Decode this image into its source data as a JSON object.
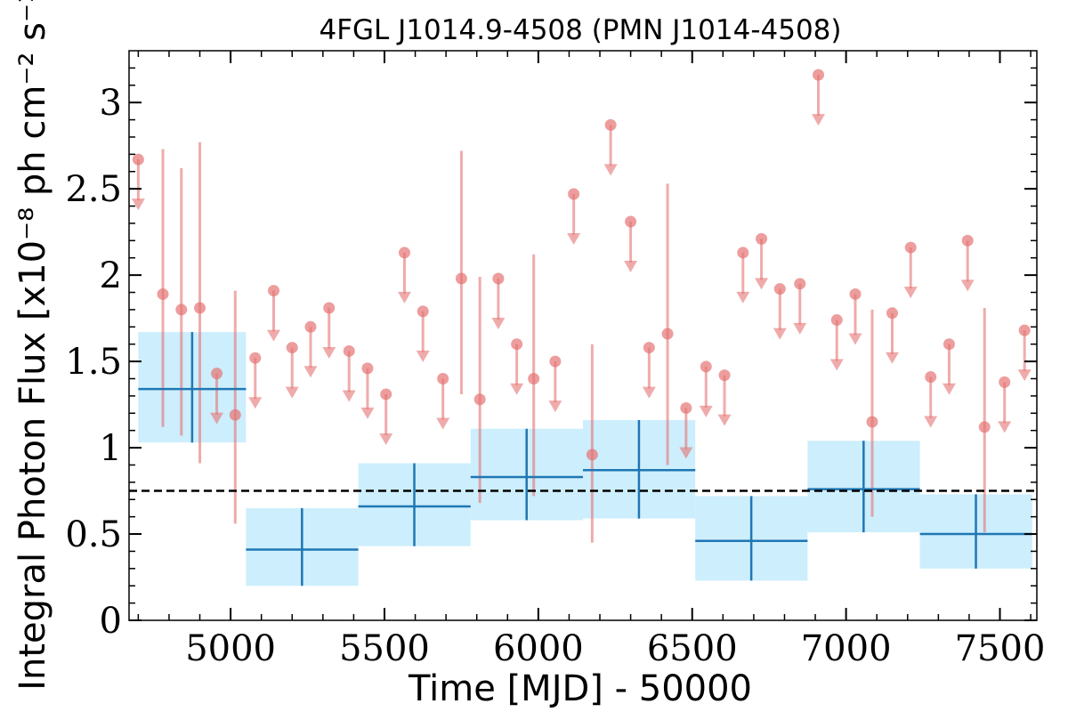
{
  "chart_data": {
    "type": "scatter",
    "title": "4FGL J1014.9-4508 (PMN J1014-4508)",
    "xlabel": "Time [MJD] - 50000",
    "ylabel": "Integral Photon Flux [x10⁻⁸ ph cm⁻² s⁻¹]",
    "xlim": [
      4670,
      7620
    ],
    "ylim": [
      0,
      3.3
    ],
    "x_ticks": [
      5000,
      5500,
      6000,
      6500,
      7000,
      7500
    ],
    "y_ticks": [
      0,
      0.5,
      1,
      1.5,
      2,
      2.5,
      3
    ],
    "x_tick_labels": [
      "5000",
      "5500",
      "6000",
      "6500",
      "7000",
      "7500"
    ],
    "y_tick_labels": [
      "0",
      "0.5",
      "1",
      "1.5",
      "2",
      "2.5",
      "3"
    ],
    "reference_line": {
      "y": 0.75,
      "style": "dashed",
      "color": "#000000"
    },
    "binned_series": [
      {
        "x_start": 4700,
        "x_end": 5050,
        "x": 4875,
        "y": 1.34,
        "y_low": 1.03,
        "y_high": 1.67
      },
      {
        "x_start": 5050,
        "x_end": 5415,
        "x": 5232,
        "y": 0.41,
        "y_low": 0.2,
        "y_high": 0.65
      },
      {
        "x_start": 5415,
        "x_end": 5780,
        "x": 5597,
        "y": 0.66,
        "y_low": 0.43,
        "y_high": 0.91
      },
      {
        "x_start": 5780,
        "x_end": 6145,
        "x": 5962,
        "y": 0.83,
        "y_low": 0.58,
        "y_high": 1.11
      },
      {
        "x_start": 6145,
        "x_end": 6510,
        "x": 6327,
        "y": 0.87,
        "y_low": 0.59,
        "y_high": 1.16
      },
      {
        "x_start": 6510,
        "x_end": 6875,
        "x": 6692,
        "y": 0.46,
        "y_low": 0.23,
        "y_high": 0.72
      },
      {
        "x_start": 6875,
        "x_end": 7240,
        "x": 7057,
        "y": 0.76,
        "y_low": 0.51,
        "y_high": 1.04
      },
      {
        "x_start": 7240,
        "x_end": 7605,
        "x": 7422,
        "y": 0.5,
        "y_low": 0.3,
        "y_high": 0.73
      }
    ],
    "monthly_detections": [
      {
        "x": 4780,
        "y": 1.89,
        "y_low": 1.12,
        "y_high": 2.73
      },
      {
        "x": 4840,
        "y": 1.8,
        "y_low": 1.07,
        "y_high": 2.62
      },
      {
        "x": 4900,
        "y": 1.81,
        "y_low": 0.91,
        "y_high": 2.77
      },
      {
        "x": 5015,
        "y": 1.19,
        "y_low": 0.56,
        "y_high": 1.91
      },
      {
        "x": 5750,
        "y": 1.98,
        "y_low": 1.31,
        "y_high": 2.72
      },
      {
        "x": 5810,
        "y": 1.28,
        "y_low": 0.68,
        "y_high": 1.99
      },
      {
        "x": 5985,
        "y": 1.4,
        "y_low": 0.72,
        "y_high": 2.12
      },
      {
        "x": 6175,
        "y": 0.96,
        "y_low": 0.45,
        "y_high": 1.6
      },
      {
        "x": 6420,
        "y": 1.66,
        "y_low": 0.9,
        "y_high": 2.53
      },
      {
        "x": 7085,
        "y": 1.15,
        "y_low": 0.6,
        "y_high": 1.8
      },
      {
        "x": 7450,
        "y": 1.12,
        "y_low": 0.51,
        "y_high": 1.81
      }
    ],
    "monthly_upper_limits": [
      {
        "x": 4700,
        "y": 2.67
      },
      {
        "x": 4955,
        "y": 1.43
      },
      {
        "x": 5080,
        "y": 1.52
      },
      {
        "x": 5140,
        "y": 1.91
      },
      {
        "x": 5200,
        "y": 1.58
      },
      {
        "x": 5260,
        "y": 1.7
      },
      {
        "x": 5320,
        "y": 1.81
      },
      {
        "x": 5385,
        "y": 1.56
      },
      {
        "x": 5445,
        "y": 1.46
      },
      {
        "x": 5505,
        "y": 1.31
      },
      {
        "x": 5565,
        "y": 2.13
      },
      {
        "x": 5625,
        "y": 1.79
      },
      {
        "x": 5690,
        "y": 1.4
      },
      {
        "x": 5870,
        "y": 1.98
      },
      {
        "x": 5930,
        "y": 1.6
      },
      {
        "x": 6055,
        "y": 1.5
      },
      {
        "x": 6115,
        "y": 2.47
      },
      {
        "x": 6235,
        "y": 2.87
      },
      {
        "x": 6300,
        "y": 2.31
      },
      {
        "x": 6360,
        "y": 1.58
      },
      {
        "x": 6480,
        "y": 1.23
      },
      {
        "x": 6545,
        "y": 1.47
      },
      {
        "x": 6605,
        "y": 1.42
      },
      {
        "x": 6665,
        "y": 2.13
      },
      {
        "x": 6725,
        "y": 2.21
      },
      {
        "x": 6785,
        "y": 1.92
      },
      {
        "x": 6850,
        "y": 1.95
      },
      {
        "x": 6910,
        "y": 3.16
      },
      {
        "x": 6970,
        "y": 1.74
      },
      {
        "x": 7030,
        "y": 1.89
      },
      {
        "x": 7150,
        "y": 1.78
      },
      {
        "x": 7210,
        "y": 2.16
      },
      {
        "x": 7275,
        "y": 1.41
      },
      {
        "x": 7335,
        "y": 1.6
      },
      {
        "x": 7395,
        "y": 2.2
      },
      {
        "x": 7515,
        "y": 1.38
      },
      {
        "x": 7580,
        "y": 1.68
      }
    ],
    "colors": {
      "binned_line": "#1f77b4",
      "binned_box": "#cdeefc",
      "monthly": "#e57373",
      "axis": "#000000"
    },
    "grid": false
  }
}
